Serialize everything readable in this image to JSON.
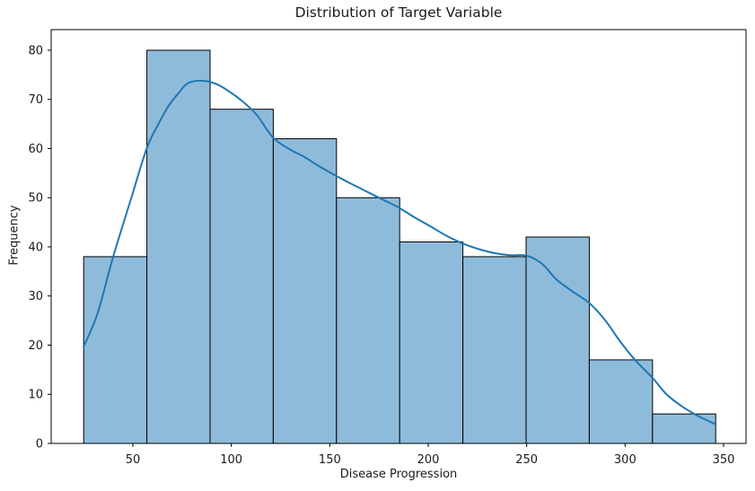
{
  "chart_data": {
    "type": "histogram",
    "title": "Distribution of Target Variable",
    "xlabel": "Disease Progression",
    "ylabel": "Frequency",
    "bin_edges": [
      25.0,
      57.1,
      89.2,
      121.3,
      153.4,
      185.5,
      217.6,
      249.7,
      281.8,
      313.9,
      346.0
    ],
    "counts": [
      38,
      80,
      68,
      62,
      50,
      41,
      38,
      42,
      17,
      6
    ],
    "kde": {
      "x": [
        25,
        32,
        40,
        49,
        57,
        63,
        68,
        73,
        78,
        85,
        92,
        99,
        106,
        113,
        121,
        129,
        137,
        145,
        153,
        161,
        169,
        177,
        185,
        193,
        201,
        209,
        218,
        226,
        234,
        242,
        250,
        258,
        265,
        273,
        282,
        290,
        297,
        305,
        314,
        321,
        329,
        337,
        346
      ],
      "y": [
        19.7,
        26.4,
        38,
        49.7,
        60,
        65,
        68.6,
        71.2,
        73.3,
        73.8,
        73.2,
        71.6,
        69.5,
        66.8,
        62.3,
        60,
        58.3,
        56.3,
        54.5,
        52.8,
        51.2,
        49.6,
        48,
        46,
        44.2,
        42.3,
        40.6,
        39.5,
        38.7,
        38.3,
        38.2,
        36.5,
        33.4,
        31,
        28.5,
        25,
        21,
        17,
        13.3,
        10,
        7.5,
        5.6,
        3.9
      ]
    },
    "x_ticks": [
      50,
      100,
      150,
      200,
      250,
      300,
      350
    ],
    "y_ticks": [
      0,
      10,
      20,
      30,
      40,
      50,
      60,
      70,
      80
    ],
    "xlim": [
      8.5,
      361.4
    ],
    "ylim": [
      0,
      84.2
    ],
    "grid": false,
    "legend": null,
    "colors": {
      "bar_fill": "#8fbbdb",
      "bar_edge": "#000000",
      "kde_line": "#1f77b4",
      "axis": "#000000",
      "text": "#1a1a1a",
      "background": "#ffffff"
    }
  }
}
